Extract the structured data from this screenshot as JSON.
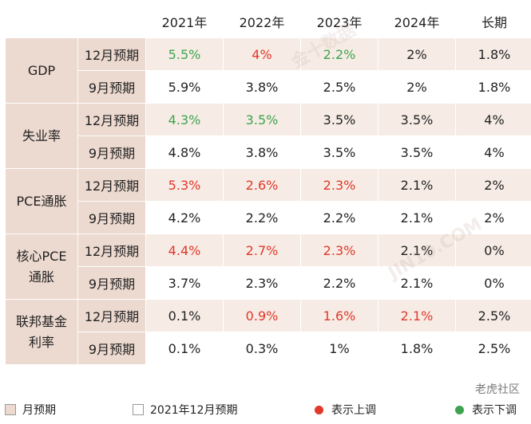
{
  "chart_data": {
    "type": "table",
    "columns": [
      "2021年",
      "2022年",
      "2023年",
      "2024年",
      "长期"
    ],
    "groups": [
      {
        "label_lines": [
          "GDP"
        ],
        "rows": [
          {
            "label": "12月预期",
            "values": [
              {
                "v": "5.5%",
                "s": "down"
              },
              {
                "v": "4%",
                "s": "up"
              },
              {
                "v": "2.2%",
                "s": "down"
              },
              {
                "v": "2%",
                "s": "norm"
              },
              {
                "v": "1.8%",
                "s": "norm"
              }
            ]
          },
          {
            "label": "9月预期",
            "values": [
              {
                "v": "5.9%",
                "s": "norm"
              },
              {
                "v": "3.8%",
                "s": "norm"
              },
              {
                "v": "2.5%",
                "s": "norm"
              },
              {
                "v": "2%",
                "s": "norm"
              },
              {
                "v": "1.8%",
                "s": "norm"
              }
            ]
          }
        ]
      },
      {
        "label_lines": [
          "失业率"
        ],
        "rows": [
          {
            "label": "12月预期",
            "values": [
              {
                "v": "4.3%",
                "s": "down"
              },
              {
                "v": "3.5%",
                "s": "down"
              },
              {
                "v": "3.5%",
                "s": "norm"
              },
              {
                "v": "3.5%",
                "s": "norm"
              },
              {
                "v": "4%",
                "s": "norm"
              }
            ]
          },
          {
            "label": "9月预期",
            "values": [
              {
                "v": "4.8%",
                "s": "norm"
              },
              {
                "v": "3.8%",
                "s": "norm"
              },
              {
                "v": "3.5%",
                "s": "norm"
              },
              {
                "v": "3.5%",
                "s": "norm"
              },
              {
                "v": "4%",
                "s": "norm"
              }
            ]
          }
        ]
      },
      {
        "label_lines": [
          "PCE通胀"
        ],
        "rows": [
          {
            "label": "12月预期",
            "values": [
              {
                "v": "5.3%",
                "s": "up"
              },
              {
                "v": "2.6%",
                "s": "up"
              },
              {
                "v": "2.3%",
                "s": "up"
              },
              {
                "v": "2.1%",
                "s": "norm"
              },
              {
                "v": "2%",
                "s": "norm"
              }
            ]
          },
          {
            "label": "9月预期",
            "values": [
              {
                "v": "4.2%",
                "s": "norm"
              },
              {
                "v": "2.2%",
                "s": "norm"
              },
              {
                "v": "2.2%",
                "s": "norm"
              },
              {
                "v": "2.1%",
                "s": "norm"
              },
              {
                "v": "2%",
                "s": "norm"
              }
            ]
          }
        ]
      },
      {
        "label_lines": [
          "核心PCE",
          "通胀"
        ],
        "rows": [
          {
            "label": "12月预期",
            "values": [
              {
                "v": "4.4%",
                "s": "up"
              },
              {
                "v": "2.7%",
                "s": "up"
              },
              {
                "v": "2.3%",
                "s": "up"
              },
              {
                "v": "2.1%",
                "s": "norm"
              },
              {
                "v": "0%",
                "s": "norm"
              }
            ]
          },
          {
            "label": "9月预期",
            "values": [
              {
                "v": "3.7%",
                "s": "norm"
              },
              {
                "v": "2.3%",
                "s": "norm"
              },
              {
                "v": "2.2%",
                "s": "norm"
              },
              {
                "v": "2.1%",
                "s": "norm"
              },
              {
                "v": "0%",
                "s": "norm"
              }
            ]
          }
        ]
      },
      {
        "label_lines": [
          "联邦基金",
          "利率"
        ],
        "rows": [
          {
            "label": "12月预期",
            "values": [
              {
                "v": "0.1%",
                "s": "norm"
              },
              {
                "v": "0.9%",
                "s": "up"
              },
              {
                "v": "1.6%",
                "s": "up"
              },
              {
                "v": "2.1%",
                "s": "up"
              },
              {
                "v": "2.5%",
                "s": "norm"
              }
            ]
          },
          {
            "label": "9月预期",
            "values": [
              {
                "v": "0.1%",
                "s": "norm"
              },
              {
                "v": "0.3%",
                "s": "norm"
              },
              {
                "v": "1%",
                "s": "norm"
              },
              {
                "v": "1.8%",
                "s": "norm"
              },
              {
                "v": "2.5%",
                "s": "norm"
              }
            ]
          }
        ]
      }
    ]
  },
  "legend": [
    {
      "kind": "square",
      "color": "#ecd9cf",
      "label": "月预期"
    },
    {
      "kind": "square",
      "color": "#ffffff",
      "label": "2021年12月预期"
    },
    {
      "kind": "dot",
      "color": "#e3372a",
      "label": "表示上调"
    },
    {
      "kind": "dot",
      "color": "#3ea44f",
      "label": "表示下调"
    }
  ],
  "colors": {
    "up": "#e3372a",
    "down": "#3ea44f",
    "header_fill": "#ecd9cf"
  },
  "watermarks": [
    "金十数据",
    "JIN10.COM"
  ],
  "brand": "老虎社区"
}
